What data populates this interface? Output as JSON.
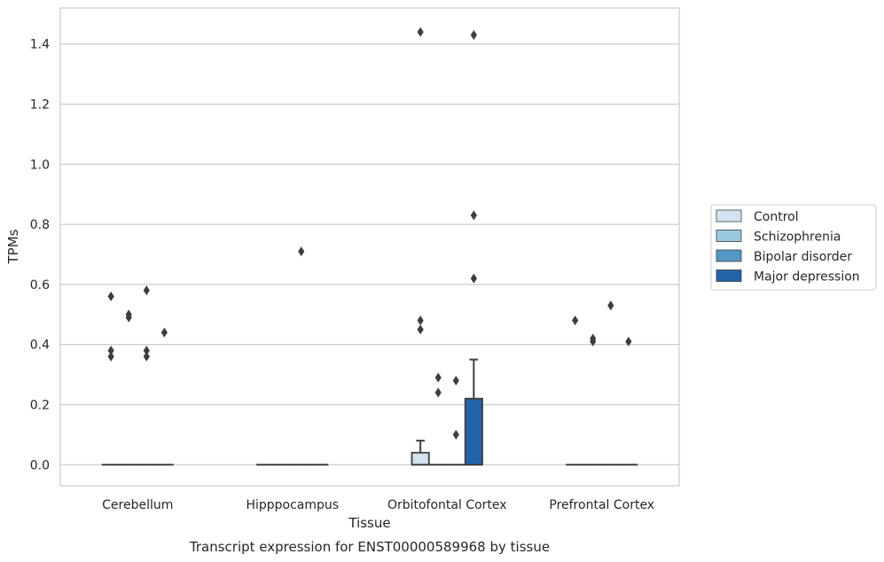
{
  "chart_data": {
    "type": "box",
    "title": "Transcript expression for ENST00000589968 by tissue",
    "xlabel": "Tissue",
    "ylabel": "TPMs",
    "ylim": [
      -0.07,
      1.52
    ],
    "yticks": [
      0.0,
      0.2,
      0.4,
      0.6,
      0.8,
      1.0,
      1.2,
      1.4
    ],
    "ytick_labels": [
      "0.0",
      "0.2",
      "0.4",
      "0.6",
      "0.8",
      "1.0",
      "1.2",
      "1.4"
    ],
    "grid": "horizontal",
    "legend_position": "right",
    "categories": [
      "Cerebellum",
      "Hipppocampus",
      "Orbitofontal Cortex",
      "Prefrontal Cortex"
    ],
    "series": [
      {
        "name": "Control",
        "color": "#d2e3f3",
        "boxes": [
          {
            "q1": 0,
            "median": 0,
            "q3": 0,
            "whisker_low": 0,
            "whisker_high": 0,
            "outliers": [
              0.56,
              0.38,
              0.36
            ]
          },
          {
            "q1": 0,
            "median": 0,
            "q3": 0,
            "whisker_low": 0,
            "whisker_high": 0,
            "outliers": []
          },
          {
            "q1": 0,
            "median": 0,
            "q3": 0.04,
            "whisker_low": 0,
            "whisker_high": 0.08,
            "outliers": [
              1.44,
              0.48,
              0.45
            ]
          },
          {
            "q1": 0,
            "median": 0,
            "q3": 0,
            "whisker_low": 0,
            "whisker_high": 0,
            "outliers": [
              0.48
            ]
          }
        ]
      },
      {
        "name": "Schizophrenia",
        "color": "#9ac8e0",
        "boxes": [
          {
            "q1": 0,
            "median": 0,
            "q3": 0,
            "whisker_low": 0,
            "whisker_high": 0,
            "outliers": [
              0.5,
              0.49
            ]
          },
          {
            "q1": 0,
            "median": 0,
            "q3": 0,
            "whisker_low": 0,
            "whisker_high": 0,
            "outliers": []
          },
          {
            "q1": 0,
            "median": 0,
            "q3": 0,
            "whisker_low": 0,
            "whisker_high": 0,
            "outliers": [
              0.29,
              0.24
            ]
          },
          {
            "q1": 0,
            "median": 0,
            "q3": 0,
            "whisker_low": 0,
            "whisker_high": 0,
            "outliers": [
              0.42,
              0.41
            ]
          }
        ]
      },
      {
        "name": "Bipolar disorder",
        "color": "#5399c6",
        "boxes": [
          {
            "q1": 0,
            "median": 0,
            "q3": 0,
            "whisker_low": 0,
            "whisker_high": 0,
            "outliers": [
              0.58,
              0.38,
              0.36
            ]
          },
          {
            "q1": 0,
            "median": 0,
            "q3": 0,
            "whisker_low": 0,
            "whisker_high": 0,
            "outliers": [
              0.71
            ]
          },
          {
            "q1": 0,
            "median": 0,
            "q3": 0,
            "whisker_low": 0,
            "whisker_high": 0,
            "outliers": [
              0.28,
              0.1
            ]
          },
          {
            "q1": 0,
            "median": 0,
            "q3": 0,
            "whisker_low": 0,
            "whisker_high": 0,
            "outliers": [
              0.53
            ]
          }
        ]
      },
      {
        "name": "Major depression",
        "color": "#2264a9",
        "boxes": [
          {
            "q1": 0,
            "median": 0,
            "q3": 0,
            "whisker_low": 0,
            "whisker_high": 0,
            "outliers": [
              0.44
            ]
          },
          {
            "q1": 0,
            "median": 0,
            "q3": 0,
            "whisker_low": 0,
            "whisker_high": 0,
            "outliers": []
          },
          {
            "q1": 0,
            "median": 0,
            "q3": 0.22,
            "whisker_low": 0,
            "whisker_high": 0.35,
            "outliers": [
              1.43,
              0.83,
              0.62
            ]
          },
          {
            "q1": 0,
            "median": 0,
            "q3": 0,
            "whisker_low": 0,
            "whisker_high": 0,
            "outliers": [
              0.41
            ]
          }
        ]
      }
    ]
  }
}
